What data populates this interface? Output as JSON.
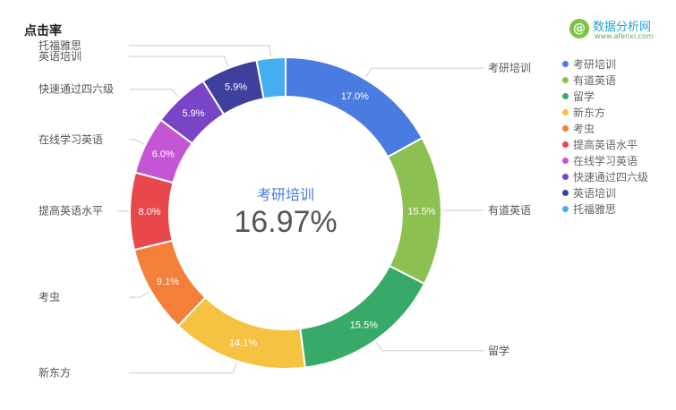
{
  "chart_data": {
    "type": "pie",
    "title": "点击率",
    "center_label": "考研培训",
    "center_value": "16.97%",
    "legend_position": "right",
    "slices": [
      {
        "name": "考研培训",
        "value": 17.0,
        "label": "17.0%",
        "color": "#4a7be0"
      },
      {
        "name": "有道英语",
        "value": 15.5,
        "label": "15.5%",
        "color": "#8cc152"
      },
      {
        "name": "留学",
        "value": 15.5,
        "label": "15.5%",
        "color": "#37aa6a"
      },
      {
        "name": "新东方",
        "value": 14.1,
        "label": "14.1%",
        "color": "#f6c242"
      },
      {
        "name": "考虫",
        "value": 9.1,
        "label": "9.1%",
        "color": "#f47f3a"
      },
      {
        "name": "提高英语水平",
        "value": 8.0,
        "label": "8.0%",
        "color": "#e8474b"
      },
      {
        "name": "在线学习英语",
        "value": 6.0,
        "label": "6.0%",
        "color": "#c455d4"
      },
      {
        "name": "快速通过四六级",
        "value": 5.9,
        "label": "5.9%",
        "color": "#7a44c6"
      },
      {
        "name": "英语培训",
        "value": 5.9,
        "label": "5.9%",
        "color": "#3f3f9e"
      },
      {
        "name": "托福雅思",
        "value": 3.0,
        "label": "",
        "color": "#44aef0"
      }
    ]
  },
  "logo": {
    "mark": "@",
    "text": "数据分析网",
    "url": "www.afenxi.com"
  }
}
